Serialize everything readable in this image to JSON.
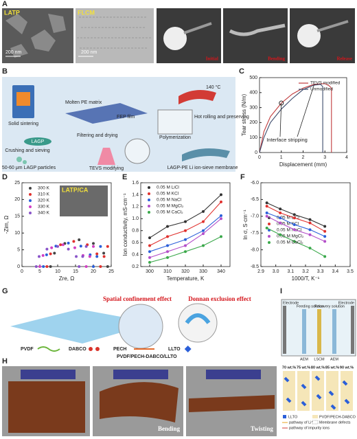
{
  "panel_letters": [
    "A",
    "B",
    "C",
    "D",
    "E",
    "F",
    "G",
    "H",
    "I"
  ],
  "panel_a": {
    "labels": [
      "LATP",
      "FLCM"
    ],
    "scale_bars": [
      "200 nm",
      "200 nm"
    ],
    "photo_labels": [
      "Initial",
      "Bending",
      "Release"
    ]
  },
  "panel_b": {
    "labels": [
      "Solid sintering",
      "LAGP",
      "Crushing and sieving",
      "50-60 μm LAGP particles",
      "Molten PE matrix",
      "FEP film",
      "Filtering and drying",
      "TEVS modifying",
      "140 °C",
      "Hot rolling and preserving",
      "Polymerization",
      "LAGP-PE Li ion-sieve membrane"
    ]
  },
  "panel_g": {
    "effects": [
      "Spatial confinement effect",
      "Donnan exclusion effect"
    ],
    "legend": [
      "PVDF",
      "DABCO",
      "PECH",
      "LLTO"
    ],
    "composite": "PVDF/PECH-DABCO/LLTO"
  },
  "panel_h": {
    "labels": [
      "Bending",
      "Twisting"
    ]
  },
  "panel_i": {
    "device": [
      "Electrode",
      "Feeding solution",
      "Recovery solution",
      "Electrode",
      "AEM",
      "LSCM",
      "AEM"
    ],
    "loadings": [
      "70 wt.%",
      "75 wt.%",
      "80 wt.%",
      "85 wt.%",
      "90 wt.%"
    ],
    "legend": [
      "LLTO",
      "PVDF/PECH-DABCO",
      "Membrane defects",
      "pathway of Li⁺",
      "pathway of impurity ions"
    ]
  },
  "chart_data": [
    {
      "type": "line",
      "xlabel": "Displacement (mm)",
      "ylabel": "Tear stress (N/m)",
      "xlim": [
        0,
        4
      ],
      "xticks": [
        0,
        1,
        2,
        3,
        4
      ],
      "ylim": [
        0,
        500
      ],
      "yticks": [
        0,
        100,
        200,
        300,
        400,
        500
      ],
      "legend": "upper right",
      "annotation": "Interface stripping",
      "series": [
        {
          "name": "TEVS modified",
          "color": "#c0393b",
          "x": [
            0,
            0.2,
            0.5,
            1,
            1.5,
            2,
            2.5,
            3,
            3.2,
            3.3,
            3.3
          ],
          "values": [
            0,
            140,
            240,
            330,
            390,
            430,
            455,
            460,
            445,
            430,
            0
          ]
        },
        {
          "name": "Unmodified",
          "color": "#3b4a6b",
          "x": [
            0,
            0.2,
            0.5,
            1,
            1.5,
            2,
            2.5,
            2.8,
            2.9,
            2.9
          ],
          "values": [
            0,
            100,
            200,
            290,
            360,
            420,
            450,
            455,
            440,
            0
          ]
        }
      ]
    },
    {
      "type": "scatter",
      "xlabel": "Zre, Ω",
      "ylabel": "-Zim, Ω",
      "inset_label": "LATP/CA",
      "xlim": [
        0,
        25
      ],
      "xticks": [
        0,
        5,
        10,
        15,
        20,
        25
      ],
      "ylim": [
        0,
        25
      ],
      "yticks": [
        0,
        5,
        10,
        15,
        20,
        25
      ],
      "legend": "upper left",
      "series": [
        {
          "name": "300 K",
          "color": "#444444",
          "x": [
            8,
            9.1,
            12,
            16,
            20,
            22.9,
            24
          ],
          "values": [
            0,
            4,
            6.9,
            8,
            6.9,
            4,
            0
          ]
        },
        {
          "name": "310 K",
          "color": "#e0312e",
          "x": [
            7,
            8,
            10.8,
            14.5,
            18.3,
            21,
            22,
            23,
            24
          ],
          "values": [
            0,
            3.8,
            6.5,
            7.5,
            6.5,
            3.8,
            0,
            3,
            6
          ]
        },
        {
          "name": "320 K",
          "color": "#2b5fd9",
          "x": [
            6,
            6.9,
            9.5,
            13,
            16.5,
            19.1,
            20,
            21,
            22
          ],
          "values": [
            0,
            3.5,
            6.1,
            7,
            6.1,
            3.5,
            0,
            3,
            6
          ]
        },
        {
          "name": "330 K",
          "color": "#d23fc4",
          "x": [
            5,
            5.9,
            8.3,
            11.5,
            14.8,
            17.1,
            18,
            19,
            20
          ],
          "values": [
            0,
            3.3,
            5.6,
            6.5,
            5.6,
            3.3,
            0,
            3,
            6
          ]
        },
        {
          "name": "340 K",
          "color": "#8a55c9",
          "x": [
            4,
            4.8,
            7,
            10,
            13,
            15.2,
            16,
            17,
            18
          ],
          "values": [
            0,
            3,
            5.2,
            6,
            5.2,
            3,
            0,
            3,
            6
          ]
        }
      ]
    },
    {
      "type": "line",
      "markers": true,
      "xlabel": "Temperature, K",
      "ylabel": "Ion conductivity, mS·cm⁻¹",
      "x": [
        300,
        310,
        320,
        330,
        340
      ],
      "xlim": [
        295,
        345
      ],
      "xticks": [
        300,
        310,
        320,
        330,
        340
      ],
      "ylim": [
        0.2,
        1.6
      ],
      "yticks": [
        0.2,
        0.4,
        0.6,
        0.8,
        {
          "value": 1,
          "label": "1.0"
        },
        1.2,
        1.4,
        1.6
      ],
      "legend": "upper left",
      "series": [
        {
          "name": "0.05 M LiCl",
          "color": "#333333",
          "values": [
            0.68,
            0.87,
            0.95,
            1.12,
            1.4
          ]
        },
        {
          "name": "0.05 M KCl",
          "color": "#e0312e",
          "values": [
            0.55,
            0.7,
            0.8,
            0.95,
            1.28
          ]
        },
        {
          "name": "0.05 M NaCl",
          "color": "#2b5fd9",
          "values": [
            0.45,
            0.55,
            0.65,
            0.8,
            1.05
          ]
        },
        {
          "name": "0.05 M MgCl₂",
          "color": "#b44fc9",
          "values": [
            0.35,
            0.45,
            0.55,
            0.75,
            1
          ]
        },
        {
          "name": "0.05 M CaCl₂",
          "color": "#3aa84a",
          "values": [
            0.27,
            0.35,
            0.45,
            0.55,
            0.7
          ]
        }
      ]
    },
    {
      "type": "line",
      "markers": true,
      "xlabel": "1000/T, K⁻¹",
      "ylabel": "ln σ, S·cm⁻¹",
      "x": [
        2.94,
        3.03,
        3.125,
        3.23,
        3.33
      ],
      "xlim": [
        2.9,
        3.5
      ],
      "xticks": [
        2.9,
        {
          "value": 3,
          "label": "3.0"
        },
        3.1,
        3.2,
        3.3,
        3.4,
        3.5
      ],
      "ylim": [
        -8.5,
        -6
      ],
      "yticks": [
        -8.5,
        {
          "value": -8,
          "label": "-8.0"
        },
        -7.5,
        {
          "value": -7,
          "label": "-7.0"
        },
        -6.5,
        {
          "value": -6,
          "label": "-6.0"
        }
      ],
      "legend": "center left",
      "series": [
        {
          "name": "0.05 M LiCl",
          "color": "#333333",
          "values": [
            -6.6,
            -6.78,
            -6.95,
            -7.1,
            -7.3
          ]
        },
        {
          "name": "0.05 M KCl",
          "color": "#e0312e",
          "values": [
            -6.7,
            -6.9,
            -7.05,
            -7.2,
            -7.45
          ]
        },
        {
          "name": "0.05 M NaCl",
          "color": "#2b5fd9",
          "values": [
            -6.9,
            -7.05,
            -7.25,
            -7.4,
            -7.6
          ]
        },
        {
          "name": "0.05 M MgCl₂",
          "color": "#b44fc9",
          "values": [
            -7,
            -7.2,
            -7.4,
            -7.55,
            -7.75
          ]
        },
        {
          "name": "0.05 M CaCl₂",
          "color": "#3aa84a",
          "values": [
            -7.35,
            -7.55,
            -7.75,
            -7.95,
            -8.2
          ]
        }
      ]
    }
  ]
}
